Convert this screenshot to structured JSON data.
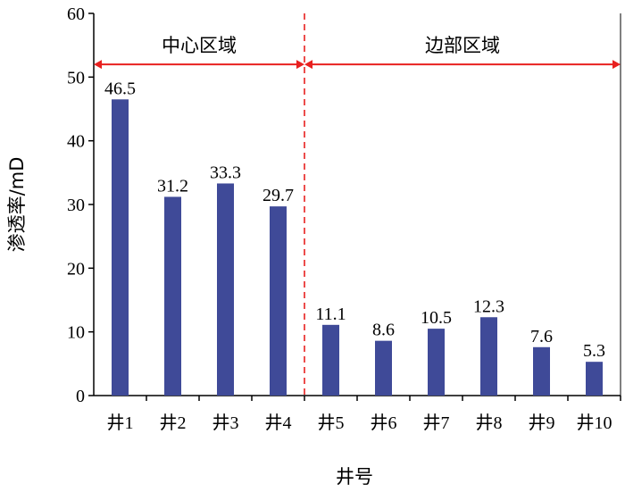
{
  "chart_data": {
    "type": "bar",
    "title": "",
    "xlabel": "井号",
    "ylabel": "渗透率/mD",
    "ylim": [
      0,
      60
    ],
    "yticks": [
      0,
      10,
      20,
      30,
      40,
      50,
      60
    ],
    "grid": false,
    "categories": [
      "井1",
      "井2",
      "井3",
      "井4",
      "井5",
      "井6",
      "井7",
      "井8",
      "井9",
      "井10"
    ],
    "values": [
      46.5,
      31.2,
      33.3,
      29.7,
      11.1,
      8.6,
      10.5,
      12.3,
      7.6,
      5.3
    ],
    "data_labels": [
      "46.5",
      "31.2",
      "33.3",
      "29.7",
      "11.1",
      "8.6",
      "10.5",
      "12.3",
      "7.6",
      "5.3"
    ],
    "bar_color": "#3f4a98",
    "annotations": {
      "regions": [
        {
          "label": "中心区域",
          "from_index": 0,
          "to_index": 3
        },
        {
          "label": "边部区域",
          "from_index": 4,
          "to_index": 9
        }
      ],
      "divider_after_index": 3,
      "arrow_color": "#e8201f",
      "divider_color": "#e8201f",
      "arrow_level": 52
    }
  }
}
